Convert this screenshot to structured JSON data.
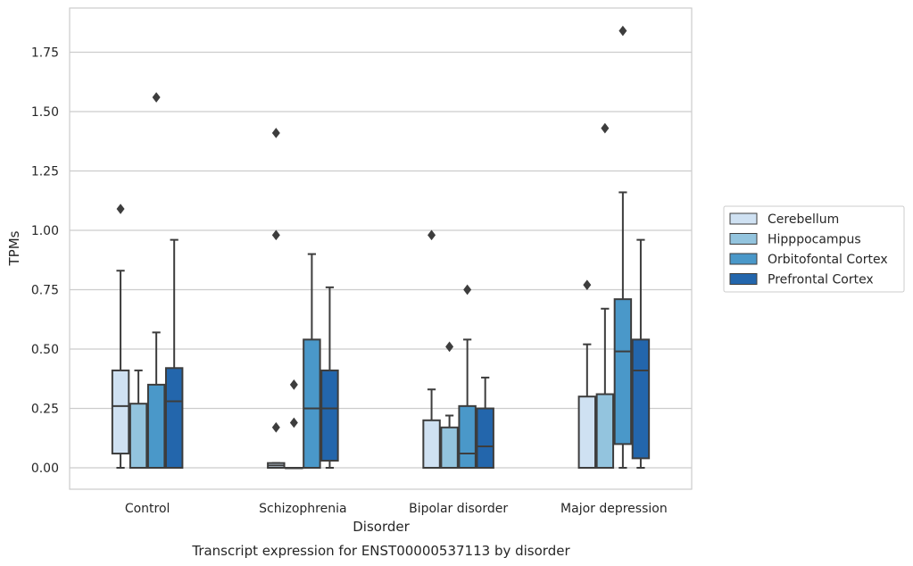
{
  "chart_data": {
    "type": "box",
    "title": "",
    "caption": "Transcript expression for ENST00000537113 by disorder",
    "xlabel": "Disorder",
    "ylabel": "TPMs",
    "ylim": [
      -0.09,
      1.95
    ],
    "yticks": [
      0.0,
      0.25,
      0.5,
      0.75,
      1.0,
      1.25,
      1.5,
      1.75
    ],
    "ytick_labels": [
      "0.00",
      "0.25",
      "0.50",
      "0.75",
      "1.00",
      "1.25",
      "1.50",
      "1.75"
    ],
    "grid": true,
    "legend_position": "right",
    "categories": [
      "Control",
      "Schizophrenia",
      "Bipolar disorder",
      "Major depression"
    ],
    "series": [
      {
        "name": "Cerebellum",
        "color": "#cfe1f2",
        "boxes": [
          {
            "whislo": 0.0,
            "q1": 0.06,
            "med": 0.26,
            "q3": 0.41,
            "whishi": 0.83,
            "fliers": [
              1.09
            ]
          },
          {
            "whislo": 0.0,
            "q1": 0.0,
            "med": 0.01,
            "q3": 0.02,
            "whishi": 0.02,
            "fliers": [
              0.17,
              0.98,
              1.41
            ]
          },
          {
            "whislo": 0.0,
            "q1": 0.0,
            "med": 0.0,
            "q3": 0.2,
            "whishi": 0.33,
            "fliers": [
              0.98
            ]
          },
          {
            "whislo": 0.0,
            "q1": 0.0,
            "med": 0.0,
            "q3": 0.3,
            "whishi": 0.52,
            "fliers": [
              0.77
            ]
          }
        ]
      },
      {
        "name": "Hipppocampus",
        "color": "#93c4de",
        "boxes": [
          {
            "whislo": 0.0,
            "q1": 0.0,
            "med": 0.0,
            "q3": 0.27,
            "whishi": 0.41,
            "fliers": []
          },
          {
            "whislo": 0.0,
            "q1": 0.0,
            "med": 0.0,
            "q3": 0.0,
            "whishi": 0.0,
            "fliers": [
              0.19,
              0.35
            ]
          },
          {
            "whislo": 0.0,
            "q1": 0.0,
            "med": 0.0,
            "q3": 0.17,
            "whishi": 0.22,
            "fliers": [
              0.51
            ]
          },
          {
            "whislo": 0.0,
            "q1": 0.0,
            "med": 0.0,
            "q3": 0.31,
            "whishi": 0.67,
            "fliers": [
              1.43
            ]
          }
        ]
      },
      {
        "name": "Orbitofontal Cortex",
        "color": "#4a98c9",
        "boxes": [
          {
            "whislo": 0.0,
            "q1": 0.0,
            "med": 0.0,
            "q3": 0.35,
            "whishi": 0.57,
            "fliers": [
              1.56
            ]
          },
          {
            "whislo": 0.0,
            "q1": 0.0,
            "med": 0.25,
            "q3": 0.54,
            "whishi": 0.9,
            "fliers": []
          },
          {
            "whislo": 0.0,
            "q1": 0.0,
            "med": 0.06,
            "q3": 0.26,
            "whishi": 0.54,
            "fliers": [
              0.75
            ]
          },
          {
            "whislo": 0.0,
            "q1": 0.1,
            "med": 0.49,
            "q3": 0.71,
            "whishi": 1.16,
            "fliers": [
              1.84
            ]
          }
        ]
      },
      {
        "name": "Prefrontal Cortex",
        "color": "#2366ac",
        "boxes": [
          {
            "whislo": 0.0,
            "q1": 0.0,
            "med": 0.28,
            "q3": 0.42,
            "whishi": 0.96,
            "fliers": []
          },
          {
            "whislo": 0.0,
            "q1": 0.03,
            "med": 0.25,
            "q3": 0.41,
            "whishi": 0.76,
            "fliers": []
          },
          {
            "whislo": 0.0,
            "q1": 0.0,
            "med": 0.09,
            "q3": 0.25,
            "whishi": 0.38,
            "fliers": []
          },
          {
            "whislo": 0.0,
            "q1": 0.04,
            "med": 0.41,
            "q3": 0.54,
            "whishi": 0.96,
            "fliers": []
          }
        ]
      }
    ]
  }
}
